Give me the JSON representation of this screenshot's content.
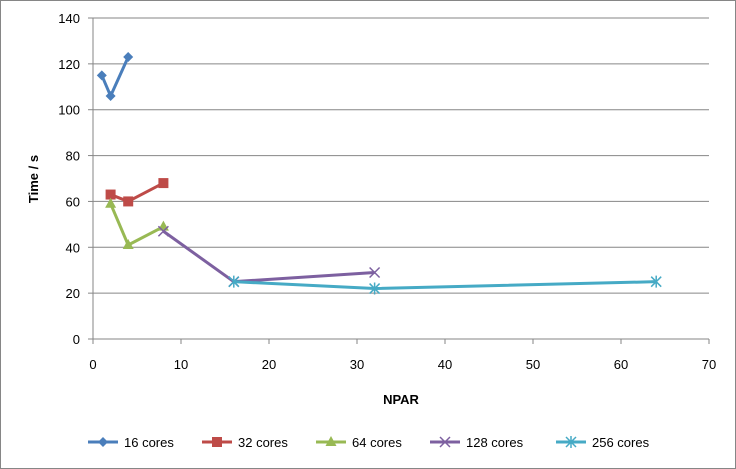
{
  "chart_data": {
    "type": "line",
    "title": "",
    "xlabel": "NPAR",
    "ylabel": "Time / s",
    "xlim": [
      0,
      70
    ],
    "ylim": [
      0,
      140
    ],
    "x_ticks": [
      0,
      10,
      20,
      30,
      40,
      50,
      60,
      70
    ],
    "y_ticks": [
      0,
      20,
      40,
      60,
      80,
      100,
      120,
      140
    ],
    "grid": "horizontal",
    "legend_position": "bottom",
    "series": [
      {
        "name": "16 cores",
        "color": "#4a7ebb",
        "marker": "diamond",
        "x": [
          1,
          2,
          4
        ],
        "y": [
          115,
          106,
          123
        ]
      },
      {
        "name": "32 cores",
        "color": "#be4b48",
        "marker": "square",
        "x": [
          2,
          4,
          8
        ],
        "y": [
          63,
          60,
          68
        ]
      },
      {
        "name": "64 cores",
        "color": "#98b954",
        "marker": "triangle",
        "x": [
          2,
          4,
          8
        ],
        "y": [
          59,
          41,
          49
        ]
      },
      {
        "name": "128 cores",
        "color": "#7d60a0",
        "marker": "x",
        "x": [
          8,
          16,
          32
        ],
        "y": [
          47,
          25,
          29
        ]
      },
      {
        "name": "256 cores",
        "color": "#46aac5",
        "marker": "star",
        "x": [
          16,
          32,
          64
        ],
        "y": [
          25,
          22,
          25
        ]
      }
    ]
  }
}
